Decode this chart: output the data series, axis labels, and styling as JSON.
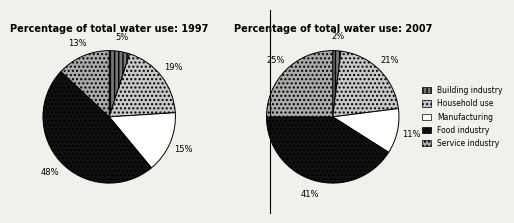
{
  "title1": "Percentage of total water use: 1997",
  "title2": "Percentage of total water use: 2007",
  "labels": [
    "Building industry",
    "Household use",
    "Manufacturing",
    "Food industry",
    "Service industry"
  ],
  "values1": [
    5,
    19,
    15,
    48,
    13
  ],
  "values2": [
    2,
    21,
    11,
    41,
    25
  ],
  "face_colors": [
    "#777777",
    "#c8c8c8",
    "#ffffff",
    "#111111",
    "#aaaaaa"
  ],
  "hatch_patterns": [
    "||||",
    "....",
    "~~~~",
    "....",
    "...."
  ],
  "legend_face_colors": [
    "#777777",
    "#c8c8c8",
    "#ffffff",
    "#111111",
    "#aaaaaa"
  ],
  "legend_hatch_patterns": [
    "||||",
    "....",
    "~~~~",
    "....",
    "...."
  ],
  "bg_color": "#f2f0eb",
  "title_fontsize": 7,
  "label_fontsize": 6,
  "legend_fontsize": 5.5,
  "startangle1": 90,
  "startangle2": 90
}
